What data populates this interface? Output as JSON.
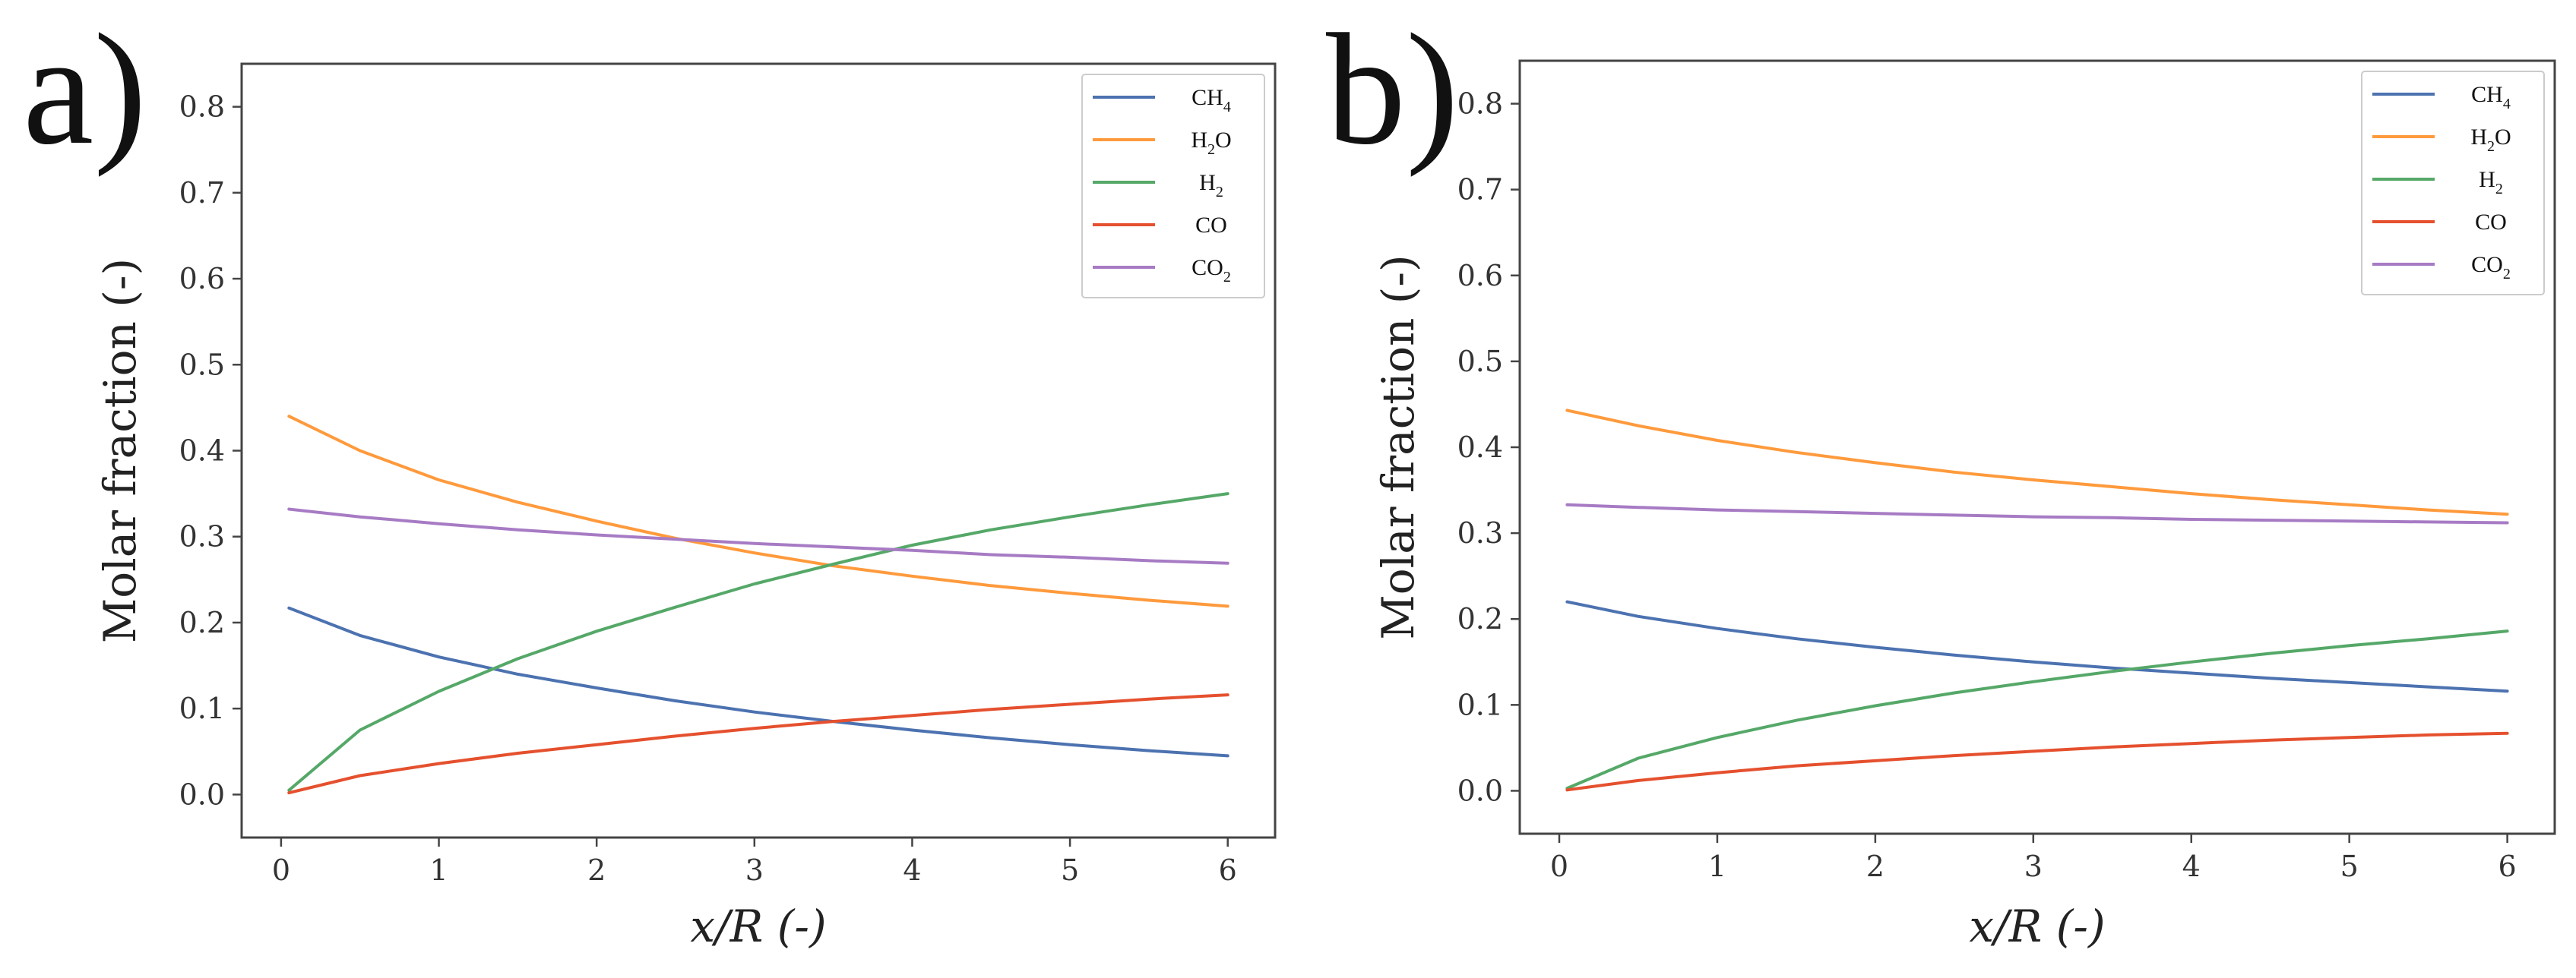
{
  "chart_data": [
    {
      "panel_label": "a)",
      "type": "line",
      "xlabel": "x/R (-)",
      "ylabel": "Molar fraction (-)",
      "xlim": [
        -0.25,
        6.3
      ],
      "ylim": [
        -0.05,
        0.85
      ],
      "xticks": [
        "0",
        "1",
        "2",
        "3",
        "4",
        "5",
        "6"
      ],
      "yticks": [
        "0.0",
        "0.1",
        "0.2",
        "0.3",
        "0.4",
        "0.5",
        "0.6",
        "0.7",
        "0.8"
      ],
      "legend_position": "top-right",
      "x": [
        0.05,
        0.5,
        1,
        1.5,
        2,
        2.5,
        3,
        3.5,
        4,
        4.5,
        5,
        5.5,
        6
      ],
      "series": [
        {
          "name": "CH4",
          "base": "CH",
          "sub": "4",
          "color": "#4c72b0",
          "values": [
            0.217,
            0.185,
            0.16,
            0.14,
            0.124,
            0.109,
            0.096,
            0.085,
            0.075,
            0.066,
            0.058,
            0.051,
            0.045
          ]
        },
        {
          "name": "H2O",
          "base": "H",
          "sub": "2",
          "after": "O",
          "color": "#ff9a3c",
          "values": [
            0.44,
            0.4,
            0.366,
            0.34,
            0.318,
            0.298,
            0.281,
            0.266,
            0.254,
            0.243,
            0.234,
            0.226,
            0.219
          ]
        },
        {
          "name": "H2",
          "base": "H",
          "sub": "2",
          "color": "#55a868",
          "values": [
            0.005,
            0.075,
            0.12,
            0.158,
            0.19,
            0.218,
            0.245,
            0.268,
            0.29,
            0.308,
            0.323,
            0.337,
            0.35
          ]
        },
        {
          "name": "CO",
          "base": "CO",
          "sub": "",
          "color": "#e5502e",
          "values": [
            0.002,
            0.022,
            0.036,
            0.048,
            0.058,
            0.068,
            0.077,
            0.085,
            0.092,
            0.099,
            0.105,
            0.111,
            0.116
          ]
        },
        {
          "name": "CO2",
          "base": "CO",
          "sub": "2",
          "color": "#a77bc4",
          "values": [
            0.332,
            0.323,
            0.315,
            0.308,
            0.302,
            0.297,
            0.292,
            0.288,
            0.284,
            0.279,
            0.276,
            0.272,
            0.269
          ]
        }
      ]
    },
    {
      "panel_label": "b)",
      "type": "line",
      "xlabel": "x/R (-)",
      "ylabel": "Molar fraction (-)",
      "xlim": [
        -0.25,
        6.3
      ],
      "ylim": [
        -0.05,
        0.85
      ],
      "xticks": [
        "0",
        "1",
        "2",
        "3",
        "4",
        "5",
        "6"
      ],
      "yticks": [
        "0.0",
        "0.1",
        "0.2",
        "0.3",
        "0.4",
        "0.5",
        "0.6",
        "0.7",
        "0.8"
      ],
      "legend_position": "top-right",
      "x": [
        0.05,
        0.5,
        1,
        1.5,
        2,
        2.5,
        3,
        3.5,
        4,
        4.5,
        5,
        5.5,
        6
      ],
      "series": [
        {
          "name": "CH4",
          "base": "CH",
          "sub": "4",
          "color": "#4c72b0",
          "values": [
            0.22,
            0.203,
            0.189,
            0.177,
            0.167,
            0.158,
            0.15,
            0.143,
            0.137,
            0.131,
            0.126,
            0.121,
            0.116
          ]
        },
        {
          "name": "H2O",
          "base": "H",
          "sub": "2",
          "after": "O",
          "color": "#ff9a3c",
          "values": [
            0.443,
            0.425,
            0.408,
            0.394,
            0.382,
            0.371,
            0.362,
            0.354,
            0.346,
            0.339,
            0.333,
            0.327,
            0.322
          ]
        },
        {
          "name": "H2",
          "base": "H",
          "sub": "2",
          "color": "#55a868",
          "values": [
            0.003,
            0.038,
            0.062,
            0.082,
            0.099,
            0.114,
            0.127,
            0.139,
            0.15,
            0.16,
            0.169,
            0.177,
            0.186
          ]
        },
        {
          "name": "CO",
          "base": "CO",
          "sub": "",
          "color": "#e5502e",
          "values": [
            0.001,
            0.012,
            0.021,
            0.029,
            0.035,
            0.041,
            0.046,
            0.051,
            0.055,
            0.059,
            0.062,
            0.065,
            0.067
          ]
        },
        {
          "name": "CO2",
          "base": "CO",
          "sub": "2",
          "color": "#a77bc4",
          "values": [
            0.333,
            0.33,
            0.327,
            0.325,
            0.323,
            0.321,
            0.319,
            0.318,
            0.316,
            0.315,
            0.314,
            0.313,
            0.312
          ]
        }
      ]
    }
  ]
}
